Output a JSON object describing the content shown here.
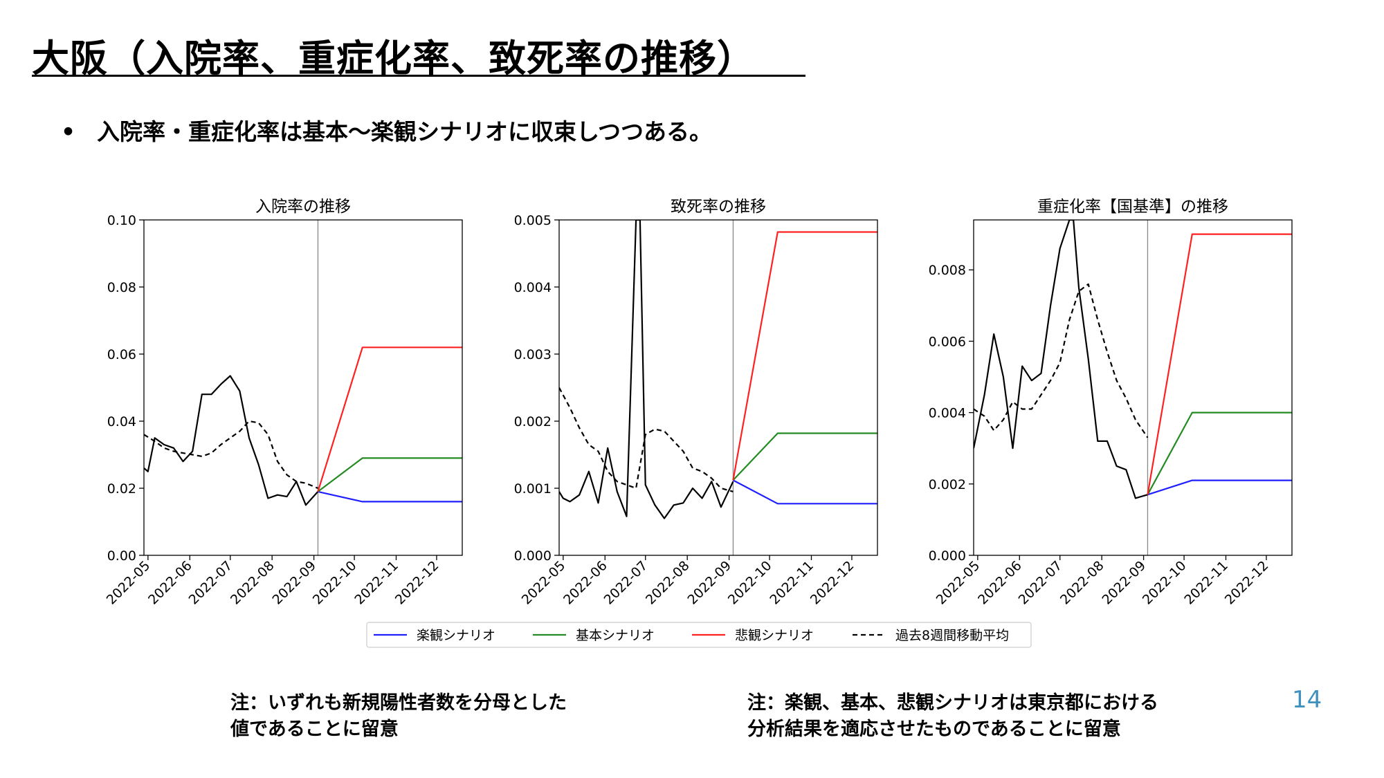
{
  "title": "大阪（入院率、重症化率、致死率の推移）",
  "bullet": "入院率・重症化率は基本～楽観シナリオに収束しつつある。",
  "bullet_marker": "•",
  "notes": {
    "left_line1": "注：いずれも新規陽性者数を分母とした",
    "left_line2": "値であることに留意",
    "right_line1": "注：楽観、基本、悲観シナリオは東京都における",
    "right_line2": "分析結果を適応させたものであることに留意"
  },
  "page_number": "14",
  "colors": {
    "optimistic": "#1f1fff",
    "base": "#228b22",
    "pessimistic": "#ff2020",
    "moving_average": "#000000",
    "actual": "#000000"
  },
  "legend": [
    {
      "label": "楽観シナリオ",
      "key": "optimistic",
      "dash": false
    },
    {
      "label": "基本シナリオ",
      "key": "base",
      "dash": false
    },
    {
      "label": "悲観シナリオ",
      "key": "pessimistic",
      "dash": false
    },
    {
      "label": "過去8週間移動平均",
      "key": "moving_average",
      "dash": true
    }
  ],
  "chart_data": [
    {
      "type": "line",
      "title": "入院率の推移",
      "x_ticks": [
        "2022-05",
        "2022-06",
        "2022-07",
        "2022-08",
        "2022-09",
        "2022-10",
        "2022-11",
        "2022-12"
      ],
      "xlim": [
        "2022-04-28",
        "2022-12-20"
      ],
      "ylim": [
        0,
        0.1
      ],
      "y_ticks": [
        0,
        0.02,
        0.04,
        0.06,
        0.08,
        0.1
      ],
      "y_tick_labels": [
        "0.00",
        "0.02",
        "0.04",
        "0.06",
        "0.08",
        "0.10"
      ],
      "vline": "2022-09-04",
      "series": [
        {
          "key": "actual",
          "dash": false,
          "x": [
            "2022-04-28",
            "2022-05-01",
            "2022-05-06",
            "2022-05-13",
            "2022-05-20",
            "2022-05-27",
            "2022-06-03",
            "2022-06-10",
            "2022-06-17",
            "2022-06-24",
            "2022-07-01",
            "2022-07-08",
            "2022-07-15",
            "2022-07-22",
            "2022-07-29",
            "2022-08-05",
            "2022-08-12",
            "2022-08-19",
            "2022-08-26",
            "2022-09-04"
          ],
          "y": [
            0.026,
            0.025,
            0.035,
            0.033,
            0.032,
            0.028,
            0.031,
            0.048,
            0.048,
            0.051,
            0.0535,
            0.049,
            0.035,
            0.027,
            0.017,
            0.018,
            0.0175,
            0.022,
            0.015,
            0.019
          ]
        },
        {
          "key": "moving_average",
          "dash": true,
          "x": [
            "2022-04-28",
            "2022-05-06",
            "2022-05-13",
            "2022-05-20",
            "2022-05-27",
            "2022-06-03",
            "2022-06-10",
            "2022-06-17",
            "2022-06-24",
            "2022-07-01",
            "2022-07-08",
            "2022-07-15",
            "2022-07-22",
            "2022-07-29",
            "2022-08-05",
            "2022-08-12",
            "2022-08-19",
            "2022-08-26",
            "2022-09-04"
          ],
          "y": [
            0.036,
            0.034,
            0.032,
            0.031,
            0.0305,
            0.03,
            0.0295,
            0.0305,
            0.033,
            0.035,
            0.037,
            0.04,
            0.0395,
            0.036,
            0.028,
            0.024,
            0.022,
            0.0215,
            0.02
          ]
        },
        {
          "key": "optimistic",
          "dash": false,
          "x": [
            "2022-09-04",
            "2022-10-07",
            "2022-12-20"
          ],
          "y": [
            0.019,
            0.016,
            0.016
          ]
        },
        {
          "key": "base",
          "dash": false,
          "x": [
            "2022-09-04",
            "2022-10-07",
            "2022-12-20"
          ],
          "y": [
            0.019,
            0.029,
            0.029
          ]
        },
        {
          "key": "pessimistic",
          "dash": false,
          "x": [
            "2022-09-04",
            "2022-10-07",
            "2022-12-20"
          ],
          "y": [
            0.019,
            0.062,
            0.062
          ]
        }
      ]
    },
    {
      "type": "line",
      "title": "致死率の推移",
      "x_ticks": [
        "2022-05",
        "2022-06",
        "2022-07",
        "2022-08",
        "2022-09",
        "2022-10",
        "2022-11",
        "2022-12"
      ],
      "xlim": [
        "2022-04-28",
        "2022-12-20"
      ],
      "ylim": [
        0,
        0.005
      ],
      "y_ticks": [
        0,
        0.001,
        0.002,
        0.003,
        0.004,
        0.005
      ],
      "y_tick_labels": [
        "0.000",
        "0.001",
        "0.002",
        "0.003",
        "0.004",
        "0.005"
      ],
      "vline": "2022-09-04",
      "series": [
        {
          "key": "actual",
          "dash": false,
          "x": [
            "2022-04-28",
            "2022-05-01",
            "2022-05-06",
            "2022-05-13",
            "2022-05-20",
            "2022-05-27",
            "2022-06-03",
            "2022-06-10",
            "2022-06-17",
            "2022-06-24",
            "2022-06-27",
            "2022-07-01",
            "2022-07-08",
            "2022-07-15",
            "2022-07-22",
            "2022-07-29",
            "2022-08-05",
            "2022-08-12",
            "2022-08-19",
            "2022-08-26",
            "2022-09-04"
          ],
          "y": [
            0.00095,
            0.00085,
            0.0008,
            0.0009,
            0.00125,
            0.00078,
            0.0016,
            0.00095,
            0.00058,
            0.005,
            0.005,
            0.00105,
            0.00075,
            0.00055,
            0.00075,
            0.00078,
            0.001,
            0.00085,
            0.0011,
            0.00072,
            0.0011
          ]
        },
        {
          "key": "moving_average",
          "dash": true,
          "x": [
            "2022-04-28",
            "2022-05-06",
            "2022-05-13",
            "2022-05-20",
            "2022-05-27",
            "2022-06-03",
            "2022-06-10",
            "2022-06-17",
            "2022-06-24",
            "2022-07-01",
            "2022-07-08",
            "2022-07-15",
            "2022-07-22",
            "2022-07-29",
            "2022-08-05",
            "2022-08-12",
            "2022-08-19",
            "2022-08-26",
            "2022-09-04"
          ],
          "y": [
            0.0025,
            0.0022,
            0.0019,
            0.00165,
            0.00155,
            0.00125,
            0.0011,
            0.00105,
            0.001,
            0.0018,
            0.00188,
            0.00185,
            0.0017,
            0.00155,
            0.0013,
            0.00125,
            0.00115,
            0.001,
            0.00095
          ]
        },
        {
          "key": "optimistic",
          "dash": false,
          "x": [
            "2022-09-04",
            "2022-10-07",
            "2022-12-20"
          ],
          "y": [
            0.00112,
            0.00077,
            0.00077
          ]
        },
        {
          "key": "base",
          "dash": false,
          "x": [
            "2022-09-04",
            "2022-10-07",
            "2022-12-20"
          ],
          "y": [
            0.00112,
            0.00182,
            0.00182
          ]
        },
        {
          "key": "pessimistic",
          "dash": false,
          "x": [
            "2022-09-04",
            "2022-10-07",
            "2022-12-20"
          ],
          "y": [
            0.00112,
            0.00482,
            0.00482
          ]
        }
      ]
    },
    {
      "type": "line",
      "title": "重症化率【国基準】の推移",
      "x_ticks": [
        "2022-05",
        "2022-06",
        "2022-07",
        "2022-08",
        "2022-09",
        "2022-10",
        "2022-11",
        "2022-12"
      ],
      "xlim": [
        "2022-04-28",
        "2022-12-20"
      ],
      "ylim": [
        0,
        0.0094
      ],
      "y_ticks": [
        0,
        0.002,
        0.004,
        0.006,
        0.008
      ],
      "y_tick_labels": [
        "0.000",
        "0.002",
        "0.004",
        "0.006",
        "0.008"
      ],
      "vline": "2022-09-04",
      "series": [
        {
          "key": "actual",
          "dash": false,
          "x": [
            "2022-04-28",
            "2022-05-06",
            "2022-05-13",
            "2022-05-20",
            "2022-05-27",
            "2022-06-03",
            "2022-06-10",
            "2022-06-17",
            "2022-06-24",
            "2022-07-01",
            "2022-07-08",
            "2022-07-11",
            "2022-07-15",
            "2022-07-22",
            "2022-07-29",
            "2022-08-05",
            "2022-08-12",
            "2022-08-19",
            "2022-08-26",
            "2022-09-04"
          ],
          "y": [
            0.003,
            0.0045,
            0.0062,
            0.005,
            0.003,
            0.0053,
            0.0049,
            0.0051,
            0.007,
            0.0086,
            0.0094,
            0.0094,
            0.0075,
            0.0055,
            0.0032,
            0.0032,
            0.0025,
            0.0024,
            0.0016,
            0.0017
          ]
        },
        {
          "key": "moving_average",
          "dash": true,
          "x": [
            "2022-04-28",
            "2022-05-06",
            "2022-05-13",
            "2022-05-20",
            "2022-05-27",
            "2022-06-03",
            "2022-06-10",
            "2022-06-17",
            "2022-06-24",
            "2022-07-01",
            "2022-07-08",
            "2022-07-15",
            "2022-07-22",
            "2022-07-29",
            "2022-08-05",
            "2022-08-12",
            "2022-08-19",
            "2022-08-26",
            "2022-09-04"
          ],
          "y": [
            0.0041,
            0.0039,
            0.0035,
            0.0038,
            0.0043,
            0.0041,
            0.0041,
            0.0045,
            0.0049,
            0.0054,
            0.0066,
            0.0074,
            0.0076,
            0.0066,
            0.0057,
            0.0049,
            0.0044,
            0.0038,
            0.0033
          ]
        },
        {
          "key": "optimistic",
          "dash": false,
          "x": [
            "2022-09-04",
            "2022-10-07",
            "2022-12-20"
          ],
          "y": [
            0.0017,
            0.0021,
            0.0021
          ]
        },
        {
          "key": "base",
          "dash": false,
          "x": [
            "2022-09-04",
            "2022-10-07",
            "2022-12-20"
          ],
          "y": [
            0.0017,
            0.004,
            0.004
          ]
        },
        {
          "key": "pessimistic",
          "dash": false,
          "x": [
            "2022-09-04",
            "2022-10-07",
            "2022-12-20"
          ],
          "y": [
            0.0017,
            0.009,
            0.009
          ]
        }
      ]
    }
  ]
}
